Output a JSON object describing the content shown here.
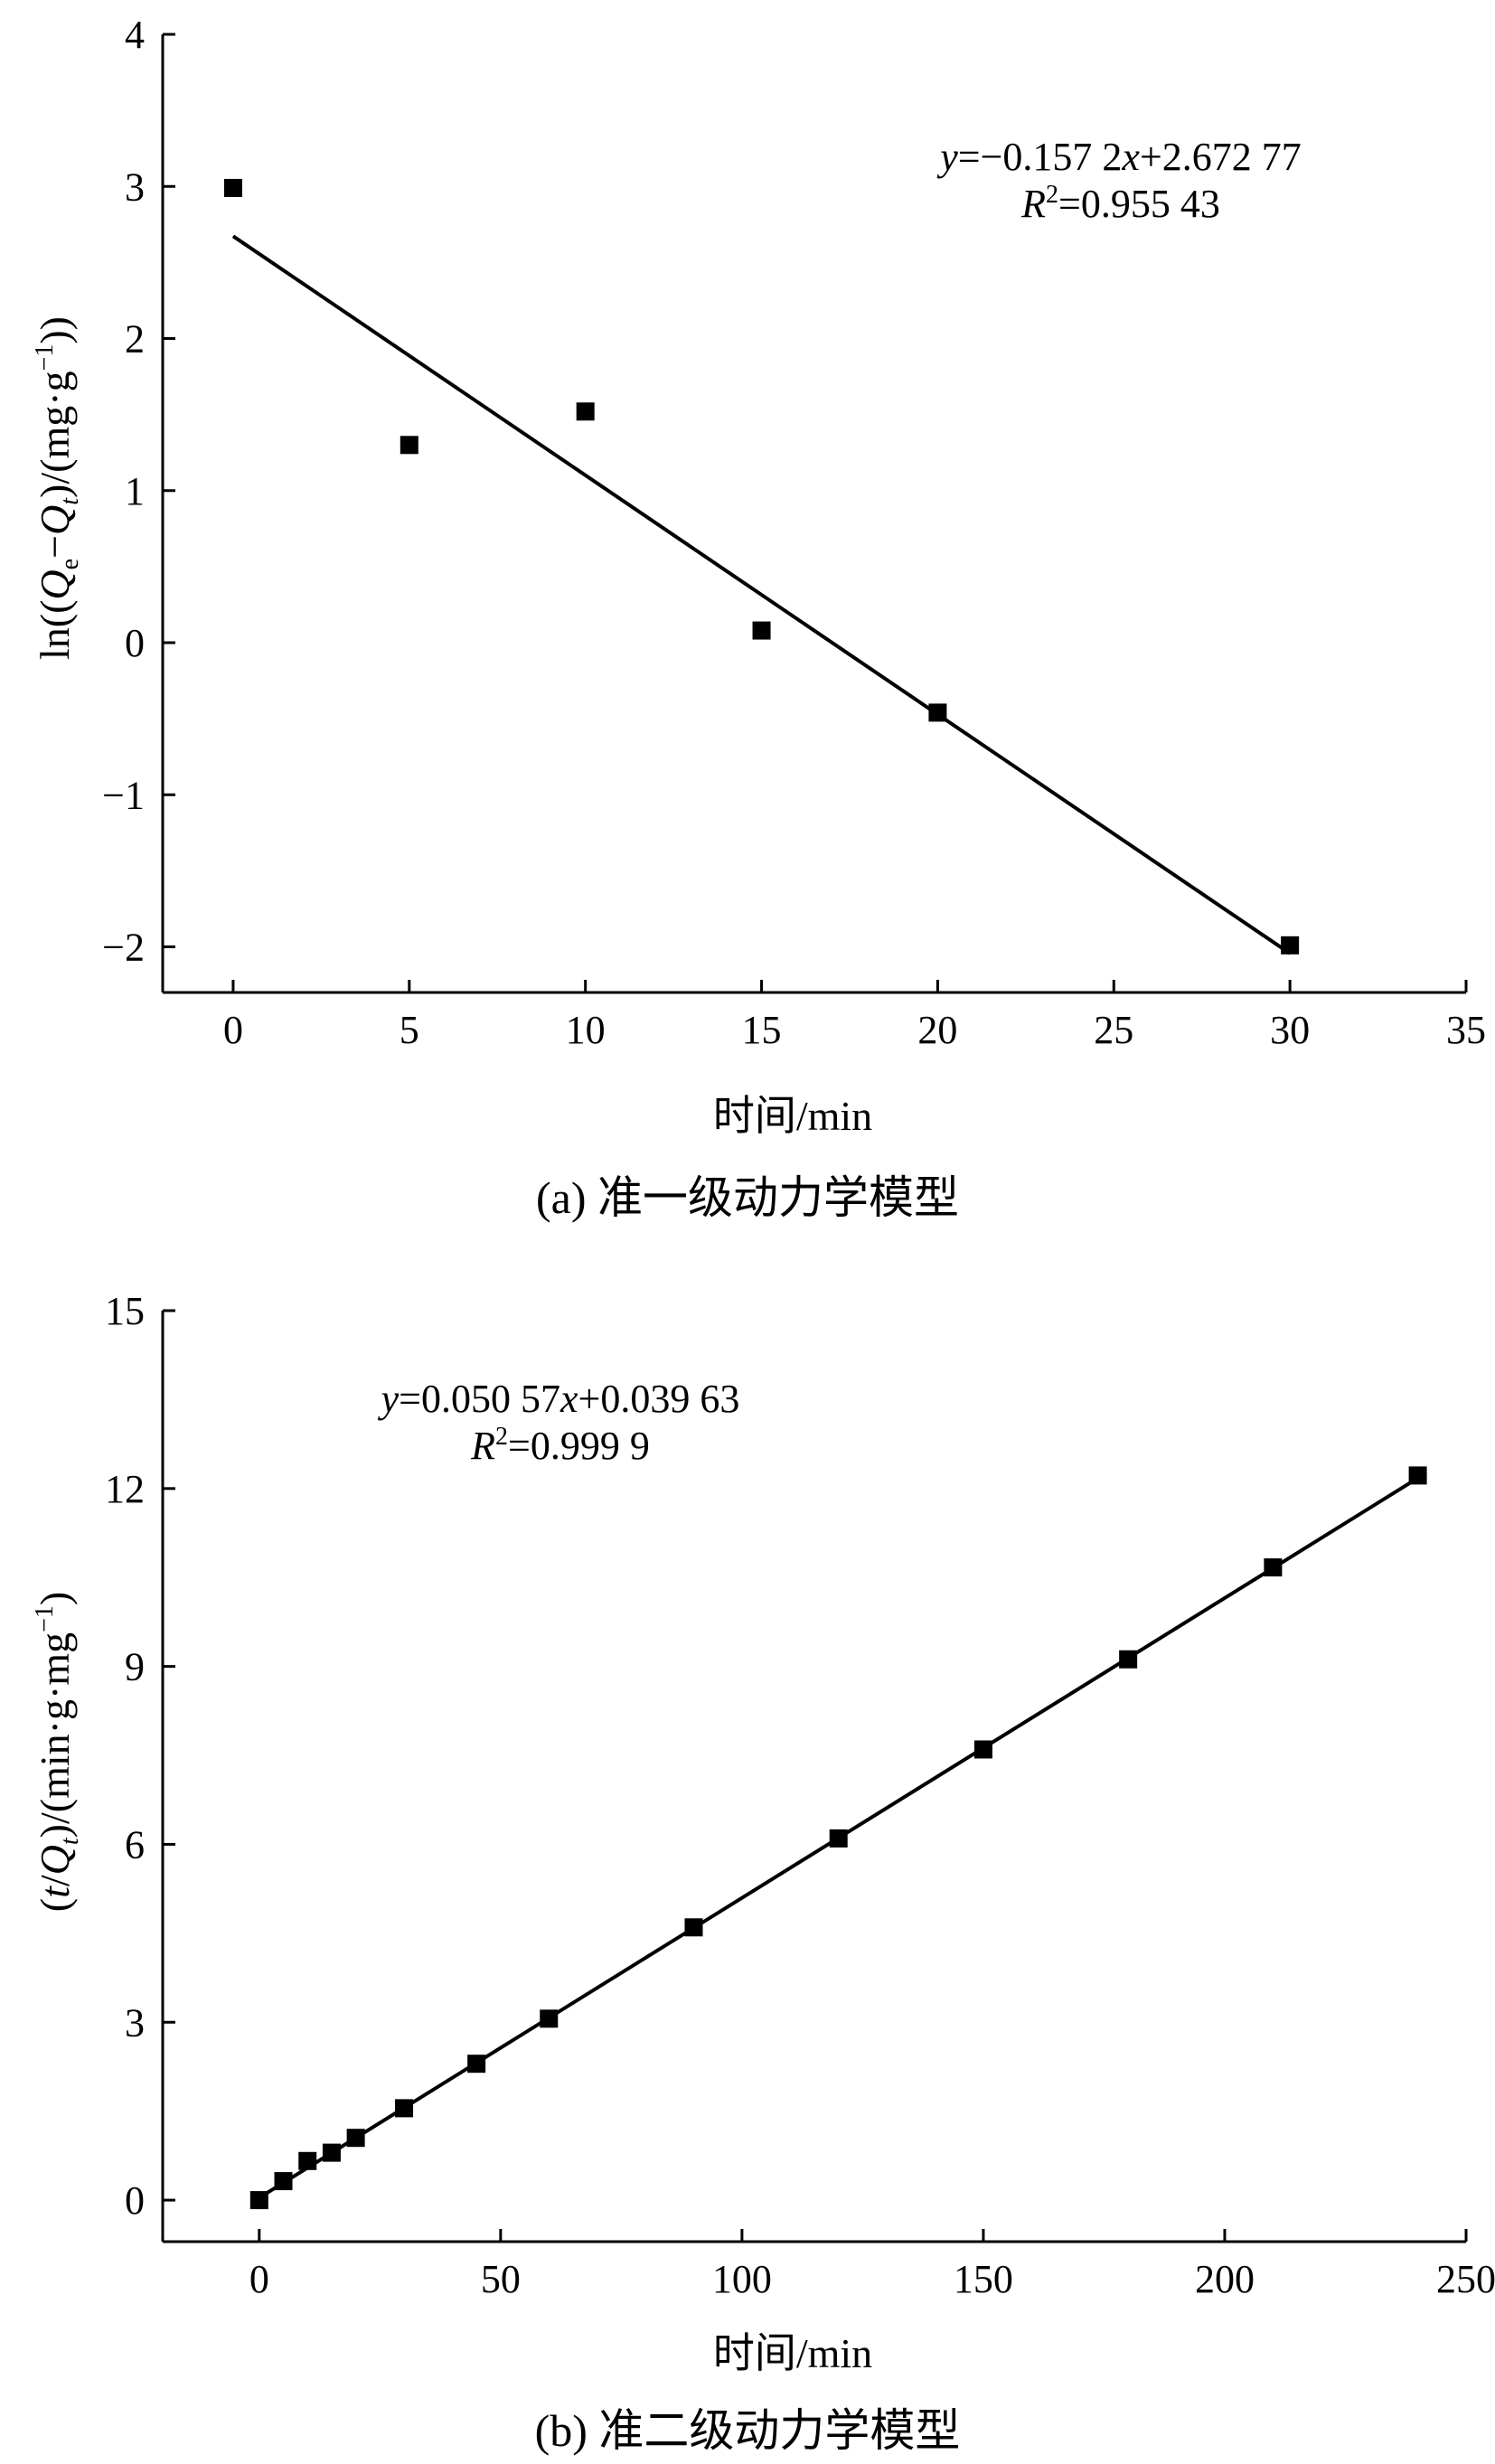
{
  "colors": {
    "ink": "#000000",
    "background": "#ffffff"
  },
  "chart_data": [
    {
      "type": "scatter",
      "caption": "(a) 准一级动力学模型",
      "xlabel": "时间/min",
      "ylabel": "ln((Qe−Qt)/(mg·g−1))",
      "ylabel_parts": {
        "pre": "ln((",
        "q1": "Q",
        "sub1": "e",
        "mid": "−",
        "q2": "Q",
        "sub2": "t",
        "post": ")/(mg·g",
        "sup": "−1",
        "end": "))"
      },
      "xlim": [
        -2,
        35
      ],
      "ylim": [
        -2.3,
        4
      ],
      "xticks": [
        0,
        5,
        10,
        15,
        20,
        25,
        30,
        35
      ],
      "yticks": [
        -2,
        -1,
        0,
        1,
        2,
        3,
        4
      ],
      "ytick_labels": [
        "−2",
        "−1",
        "0",
        "1",
        "2",
        "3",
        "4"
      ],
      "points": [
        {
          "x": 0,
          "y": 2.99
        },
        {
          "x": 5,
          "y": 1.3
        },
        {
          "x": 10,
          "y": 1.52
        },
        {
          "x": 15,
          "y": 0.08
        },
        {
          "x": 20,
          "y": -0.46
        },
        {
          "x": 30,
          "y": -1.99
        }
      ],
      "fit": {
        "slope": -0.1572,
        "intercept": 2.67277,
        "x_range": [
          0,
          30
        ]
      },
      "equation": {
        "y_var": "y",
        "eq_text": "=−0.157 2",
        "x_var": "x",
        "tail": "+2.672 77",
        "r_var": "R",
        "r_sup": "2",
        "r_text": "=0.955 43"
      }
    },
    {
      "type": "scatter",
      "caption": "(b) 准二级动力学模型",
      "xlabel": "时间/min",
      "ylabel": "(t/Qt)/(min·g·mg−1)",
      "ylabel_parts": {
        "pre": "(",
        "t": "t",
        "slash": "/",
        "q": "Q",
        "sub": "t",
        "post": ")/(min·g·mg",
        "sup": "−1",
        "end": ")"
      },
      "xlim": [
        -20,
        250
      ],
      "ylim": [
        -0.7,
        15
      ],
      "xticks": [
        0,
        50,
        100,
        150,
        200,
        250
      ],
      "yticks": [
        0,
        3,
        6,
        9,
        12,
        15
      ],
      "ytick_labels": [
        "0",
        "3",
        "6",
        "9",
        "12",
        "15"
      ],
      "points": [
        {
          "x": 0,
          "y": 0
        },
        {
          "x": 5,
          "y": 0.32
        },
        {
          "x": 10,
          "y": 0.66
        },
        {
          "x": 15,
          "y": 0.8
        },
        {
          "x": 20,
          "y": 1.05
        },
        {
          "x": 30,
          "y": 1.55
        },
        {
          "x": 45,
          "y": 2.3
        },
        {
          "x": 60,
          "y": 3.06
        },
        {
          "x": 90,
          "y": 4.6
        },
        {
          "x": 120,
          "y": 6.1
        },
        {
          "x": 150,
          "y": 7.6
        },
        {
          "x": 180,
          "y": 9.12
        },
        {
          "x": 210,
          "y": 10.67
        },
        {
          "x": 240,
          "y": 12.22
        }
      ],
      "fit": {
        "slope": 0.05057,
        "intercept": 0.03963,
        "x_range": [
          0,
          240
        ]
      },
      "equation": {
        "y_var": "y",
        "eq_text": "=0.050 57",
        "x_var": "x",
        "tail": "+0.039 63",
        "r_var": "R",
        "r_sup": "2",
        "r_text": "=0.999 9"
      }
    }
  ]
}
